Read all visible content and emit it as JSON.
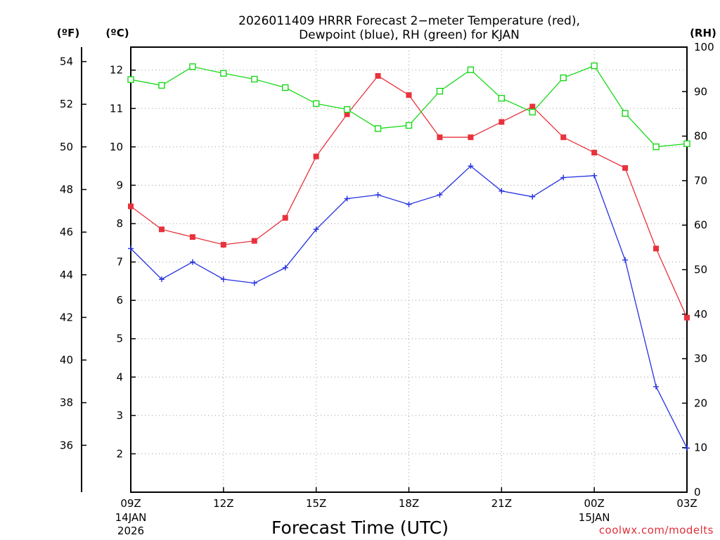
{
  "chart_data": {
    "type": "line",
    "title_lines": [
      "2026011409 HRRR Forecast 2−meter Temperature (red),",
      "Dewpoint (blue), RH (green) for KJAN"
    ],
    "xlabel": "Forecast Time (UTC)",
    "credit": "coolwx.com/modelts",
    "units": {
      "fahrenheit": "(ºF)",
      "celsius": "(ºC)",
      "rh": "(RH)"
    },
    "x_hours": [
      0,
      1,
      2,
      3,
      4,
      5,
      6,
      7,
      8,
      9,
      10,
      11,
      12,
      13,
      14,
      15,
      16,
      17,
      18
    ],
    "xlim": [
      0,
      18
    ],
    "x_ticks": [
      {
        "hour": 0,
        "label": "09Z",
        "date_lines": [
          "14JAN",
          "2026"
        ]
      },
      {
        "hour": 3,
        "label": "12Z",
        "date_lines": []
      },
      {
        "hour": 6,
        "label": "15Z",
        "date_lines": []
      },
      {
        "hour": 9,
        "label": "18Z",
        "date_lines": []
      },
      {
        "hour": 12,
        "label": "21Z",
        "date_lines": []
      },
      {
        "hour": 15,
        "label": "00Z",
        "date_lines": [
          "15JAN"
        ]
      },
      {
        "hour": 18,
        "label": "03Z",
        "date_lines": []
      }
    ],
    "celsius_axis": {
      "min": 1.0,
      "max": 12.6,
      "ticks": [
        2,
        3,
        4,
        5,
        6,
        7,
        8,
        9,
        10,
        11,
        12
      ]
    },
    "fahrenheit_axis": {
      "ticks": [
        36,
        38,
        40,
        42,
        44,
        46,
        48,
        50,
        52,
        54
      ]
    },
    "rh_axis": {
      "min": 0,
      "max": 100,
      "ticks": [
        0,
        10,
        20,
        30,
        40,
        50,
        60,
        70,
        80,
        90,
        100
      ]
    },
    "series": [
      {
        "name": "Temperature",
        "color": "#e8323c",
        "axis": "celsius",
        "marker": "filled-square",
        "values": [
          8.45,
          7.85,
          7.65,
          7.45,
          7.55,
          8.15,
          9.75,
          10.85,
          11.85,
          11.35,
          10.25,
          10.25,
          10.65,
          11.05,
          10.25,
          9.85,
          9.45,
          7.35,
          5.55
        ]
      },
      {
        "name": "Dewpoint",
        "color": "#2430e0",
        "axis": "celsius",
        "marker": "plus",
        "values": [
          7.35,
          6.55,
          7.0,
          6.55,
          6.45,
          6.85,
          7.85,
          8.65,
          8.75,
          8.5,
          8.75,
          9.5,
          8.85,
          8.7,
          9.2,
          9.25,
          7.05,
          3.75,
          2.15
        ]
      },
      {
        "name": "RH",
        "color": "#18d818",
        "axis": "rh",
        "marker": "open-square",
        "values": [
          92.7,
          91.4,
          95.6,
          94.1,
          92.8,
          90.9,
          87.3,
          86.0,
          81.7,
          82.4,
          90.1,
          94.9,
          88.5,
          85.4,
          93.1,
          95.8,
          85.1,
          77.6,
          78.3
        ]
      }
    ]
  }
}
